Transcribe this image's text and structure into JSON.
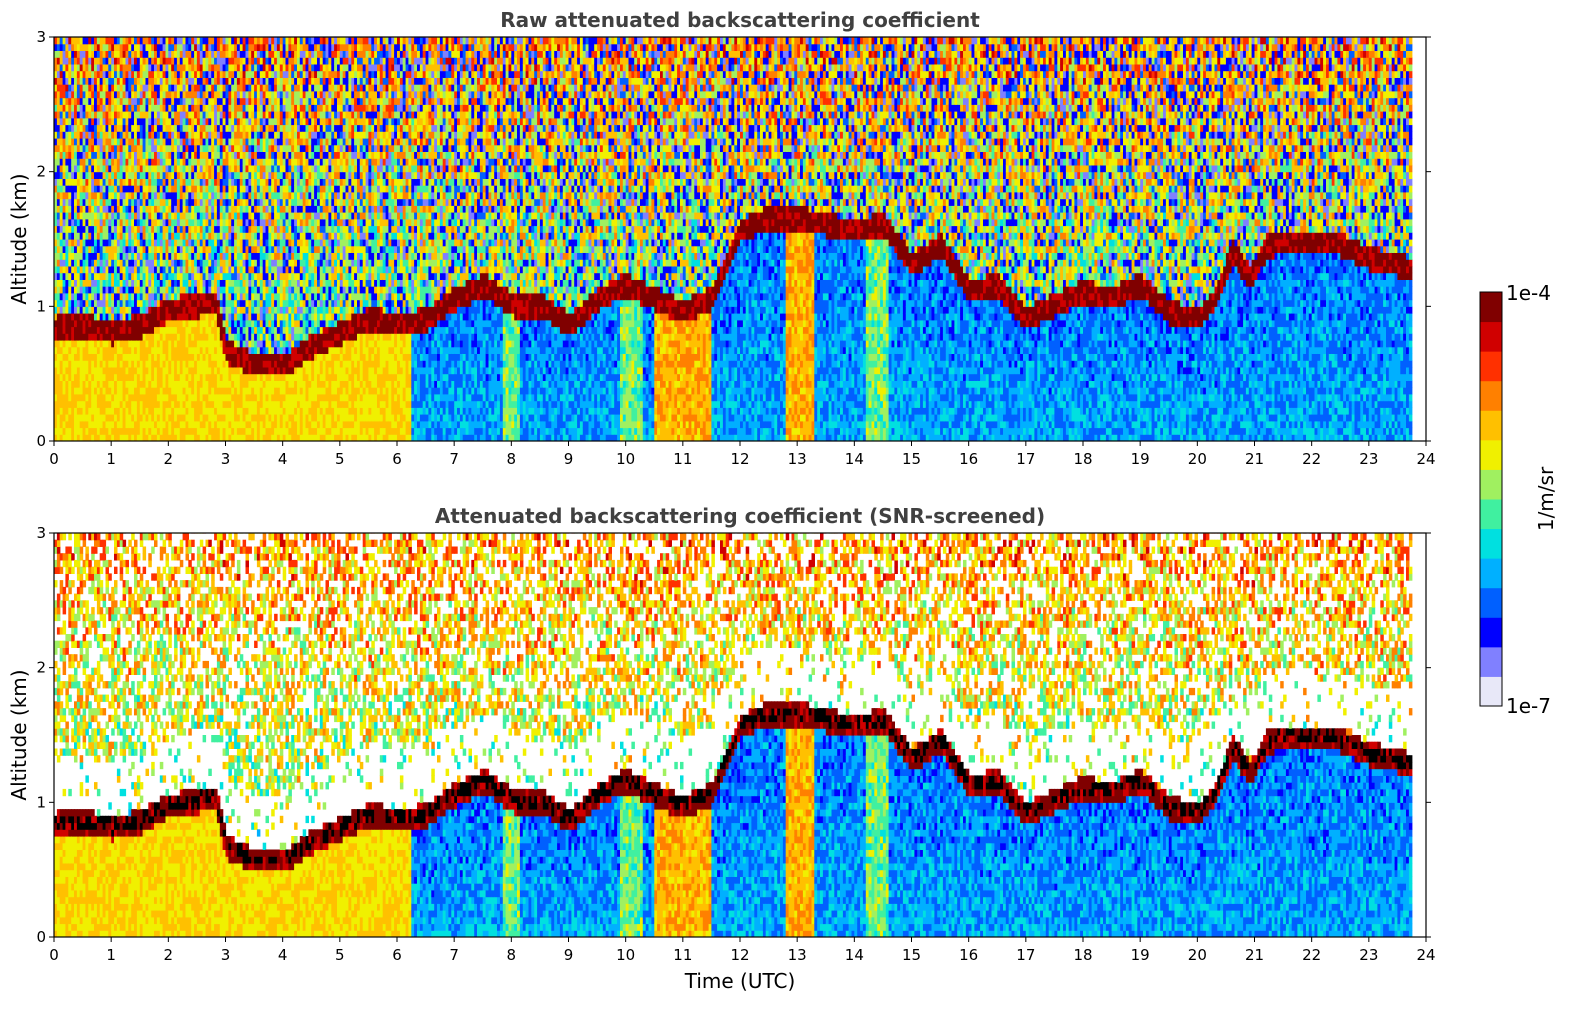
{
  "chart_data": [
    {
      "type": "heatmap",
      "title": "Raw attenuated backscattering coefficient",
      "xlabel": "",
      "ylabel": "Altitude (km)",
      "xlim": [
        0,
        24
      ],
      "ylim": [
        0,
        3
      ],
      "xticks": [
        "0",
        "1",
        "2",
        "3",
        "4",
        "5",
        "6",
        "7",
        "8",
        "9",
        "10",
        "11",
        "12",
        "13",
        "14",
        "15",
        "16",
        "17",
        "18",
        "19",
        "20",
        "21",
        "22",
        "23",
        "24"
      ],
      "yticks": [
        "0",
        "1",
        "2",
        "3"
      ],
      "screened": false,
      "cloud_layer_km": [
        [
          0,
          0.78
        ],
        [
          0.5,
          0.8
        ],
        [
          1,
          0.75
        ],
        [
          1.5,
          0.8
        ],
        [
          2,
          0.92
        ],
        [
          2.5,
          0.95
        ],
        [
          2.8,
          0.98
        ],
        [
          3,
          0.6
        ],
        [
          3.5,
          0.5
        ],
        [
          4,
          0.5
        ],
        [
          4.5,
          0.65
        ],
        [
          5,
          0.75
        ],
        [
          5.5,
          0.85
        ],
        [
          6,
          0.8
        ],
        [
          6.5,
          0.85
        ],
        [
          7,
          1.0
        ],
        [
          7.5,
          1.1
        ],
        [
          8,
          0.95
        ],
        [
          8.5,
          0.95
        ],
        [
          9,
          0.8
        ],
        [
          9.5,
          1.0
        ],
        [
          10,
          1.1
        ],
        [
          10.5,
          1.0
        ],
        [
          11,
          0.9
        ],
        [
          11.5,
          1.0
        ],
        [
          12,
          1.5
        ],
        [
          12.5,
          1.6
        ],
        [
          13,
          1.6
        ],
        [
          13.5,
          1.55
        ],
        [
          14,
          1.5
        ],
        [
          14.5,
          1.55
        ],
        [
          15,
          1.25
        ],
        [
          15.5,
          1.4
        ],
        [
          16,
          1.05
        ],
        [
          16.5,
          1.1
        ],
        [
          17,
          0.85
        ],
        [
          17.5,
          0.95
        ],
        [
          18,
          1.05
        ],
        [
          18.5,
          1.0
        ],
        [
          19,
          1.1
        ],
        [
          19.5,
          0.9
        ],
        [
          20,
          0.85
        ],
        [
          20.3,
          1.0
        ],
        [
          20.6,
          1.35
        ],
        [
          20.9,
          1.15
        ],
        [
          21.2,
          1.38
        ],
        [
          21.5,
          1.42
        ],
        [
          22,
          1.42
        ],
        [
          22.5,
          1.4
        ],
        [
          23,
          1.3
        ],
        [
          23.5,
          1.25
        ],
        [
          23.8,
          1.2
        ]
      ]
    },
    {
      "type": "heatmap",
      "title": "Attenuated backscattering coefficient (SNR-screened)",
      "xlabel": "Time (UTC)",
      "ylabel": "Altitude (km)",
      "xlim": [
        0,
        24
      ],
      "ylim": [
        0,
        3
      ],
      "xticks": [
        "0",
        "1",
        "2",
        "3",
        "4",
        "5",
        "6",
        "7",
        "8",
        "9",
        "10",
        "11",
        "12",
        "13",
        "14",
        "15",
        "16",
        "17",
        "18",
        "19",
        "20",
        "21",
        "22",
        "23",
        "24"
      ],
      "yticks": [
        "0",
        "1",
        "2",
        "3"
      ],
      "screened": true,
      "cloud_layer_km": [
        [
          0,
          0.78
        ],
        [
          0.5,
          0.8
        ],
        [
          1,
          0.75
        ],
        [
          1.5,
          0.8
        ],
        [
          2,
          0.92
        ],
        [
          2.5,
          0.95
        ],
        [
          2.8,
          0.98
        ],
        [
          3,
          0.6
        ],
        [
          3.5,
          0.5
        ],
        [
          4,
          0.5
        ],
        [
          4.5,
          0.65
        ],
        [
          5,
          0.75
        ],
        [
          5.5,
          0.85
        ],
        [
          6,
          0.8
        ],
        [
          6.5,
          0.85
        ],
        [
          7,
          1.0
        ],
        [
          7.5,
          1.1
        ],
        [
          8,
          0.95
        ],
        [
          8.5,
          0.95
        ],
        [
          9,
          0.8
        ],
        [
          9.5,
          1.0
        ],
        [
          10,
          1.1
        ],
        [
          10.5,
          1.0
        ],
        [
          11,
          0.9
        ],
        [
          11.5,
          1.0
        ],
        [
          12,
          1.5
        ],
        [
          12.5,
          1.6
        ],
        [
          13,
          1.6
        ],
        [
          13.5,
          1.55
        ],
        [
          14,
          1.5
        ],
        [
          14.5,
          1.55
        ],
        [
          15,
          1.25
        ],
        [
          15.5,
          1.4
        ],
        [
          16,
          1.05
        ],
        [
          16.5,
          1.1
        ],
        [
          17,
          0.85
        ],
        [
          17.5,
          0.95
        ],
        [
          18,
          1.05
        ],
        [
          18.5,
          1.0
        ],
        [
          19,
          1.1
        ],
        [
          19.5,
          0.9
        ],
        [
          20,
          0.85
        ],
        [
          20.3,
          1.0
        ],
        [
          20.6,
          1.35
        ],
        [
          20.9,
          1.15
        ],
        [
          21.2,
          1.38
        ],
        [
          21.5,
          1.42
        ],
        [
          22,
          1.42
        ],
        [
          22.5,
          1.4
        ],
        [
          23,
          1.3
        ],
        [
          23.5,
          1.25
        ],
        [
          23.8,
          1.2
        ]
      ]
    }
  ],
  "colorbar": {
    "label": "1/m/sr",
    "max_label": "1e-4",
    "min_label": "1e-7",
    "scale": "log",
    "colormap": [
      "#e8e8f8",
      "#8080ff",
      "#0000ff",
      "#0060ff",
      "#00b0ff",
      "#00e0e0",
      "#40f0a0",
      "#a0f060",
      "#f0f000",
      "#ffc000",
      "#ff8000",
      "#ff3000",
      "#d00000",
      "#800000"
    ]
  }
}
